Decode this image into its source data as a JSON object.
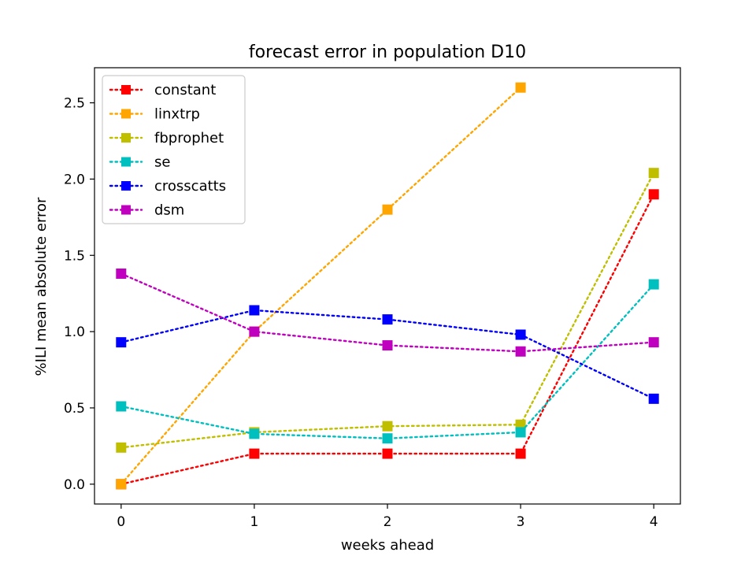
{
  "chart_data": {
    "type": "line",
    "title": "forecast error in population D10",
    "xlabel": "weeks ahead",
    "ylabel": "%ILI mean absolute error",
    "x": [
      0,
      1,
      2,
      3,
      4
    ],
    "xlim": [
      -0.2,
      4.2
    ],
    "ylim": [
      -0.13,
      2.73
    ],
    "yticks": [
      "0.0",
      "0.5",
      "1.0",
      "1.5",
      "2.0",
      "2.5"
    ],
    "xticks": [
      "0",
      "1",
      "2",
      "3",
      "4"
    ],
    "grid": false,
    "legend_position": "upper-left",
    "line_style": "dotted",
    "marker": "square",
    "series": [
      {
        "name": "constant",
        "color": "#ff0000",
        "values": [
          0.0,
          0.2,
          0.2,
          0.2,
          1.9
        ]
      },
      {
        "name": "linxtrp",
        "color": "#ffa500",
        "values": [
          0.0,
          1.0,
          1.8,
          2.6,
          null
        ]
      },
      {
        "name": "fbprophet",
        "color": "#bfbf00",
        "values": [
          0.24,
          0.34,
          0.38,
          0.39,
          2.04
        ]
      },
      {
        "name": "se",
        "color": "#00bfbf",
        "values": [
          0.51,
          0.33,
          0.3,
          0.34,
          1.31
        ]
      },
      {
        "name": "crosscatts",
        "color": "#0000ff",
        "values": [
          0.93,
          1.14,
          1.08,
          0.98,
          0.56
        ]
      },
      {
        "name": "dsm",
        "color": "#bf00bf",
        "values": [
          1.38,
          1.0,
          0.91,
          0.87,
          0.93
        ]
      }
    ]
  }
}
